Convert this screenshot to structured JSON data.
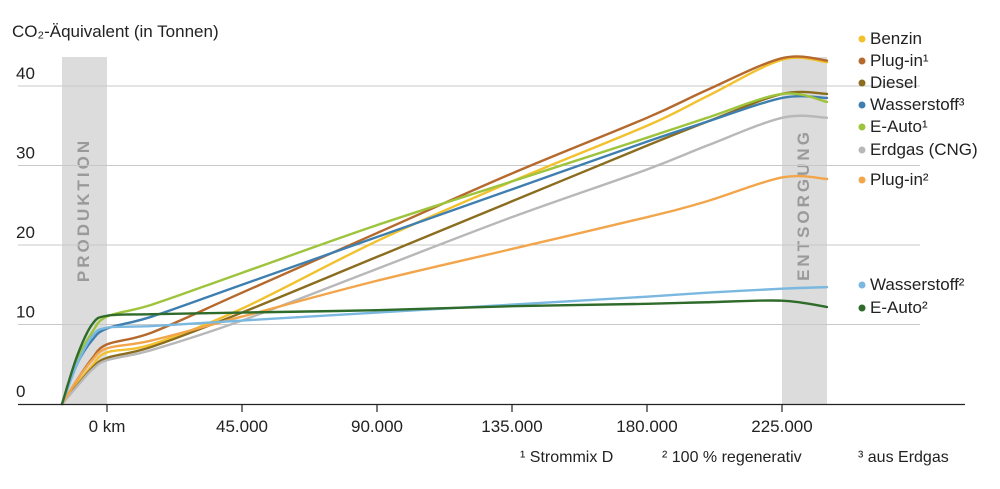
{
  "chart_data": {
    "type": "line",
    "ylabel": "CO₂-Äquivalent (in Tonnen)",
    "xlim": [
      -15000,
      270000
    ],
    "ylim": [
      0,
      45
    ],
    "x_ticks": [
      {
        "value": 0,
        "label": "0 km"
      },
      {
        "value": 45000,
        "label": "45.000"
      },
      {
        "value": 90000,
        "label": "90.000"
      },
      {
        "value": 135000,
        "label": "135.000"
      },
      {
        "value": 180000,
        "label": "180.000"
      },
      {
        "value": 225000,
        "label": "225.000"
      }
    ],
    "y_ticks": [
      {
        "value": 0,
        "label": "0"
      },
      {
        "value": 10,
        "label": "10"
      },
      {
        "value": 20,
        "label": "20"
      },
      {
        "value": 30,
        "label": "30"
      },
      {
        "value": 40,
        "label": "40"
      }
    ],
    "grid": "horizontal",
    "bands": [
      {
        "label": "PRODUKTION",
        "x_range": [
          -15000,
          0
        ],
        "color": "#dcdcdc"
      },
      {
        "label": "ENTSORGUNG",
        "x_range": [
          225000,
          240000
        ],
        "color": "#dcdcdc"
      }
    ],
    "footnotes": [
      "¹ Strommix D",
      "² 100 % regenerativ",
      "³ aus Erdgas"
    ],
    "series": [
      {
        "name": "Benzin",
        "color": "#f2c12e",
        "x": [
          -15000,
          -10000,
          -5000,
          0,
          15000,
          45000,
          90000,
          135000,
          180000,
          200000,
          225000,
          240000
        ],
        "y": [
          0,
          2.5,
          4.8,
          6.5,
          7.5,
          12,
          20.5,
          28,
          35,
          38.7,
          43.3,
          43.0
        ]
      },
      {
        "name": "Plug-in¹",
        "color": "#b5692d",
        "x": [
          -15000,
          -10000,
          -5000,
          0,
          15000,
          45000,
          90000,
          135000,
          180000,
          200000,
          225000,
          240000
        ],
        "y": [
          0,
          3,
          5.7,
          7.5,
          9,
          14,
          21.5,
          29,
          36,
          39.5,
          43.5,
          43.2
        ]
      },
      {
        "name": "Diesel",
        "color": "#8a6d1f",
        "x": [
          -15000,
          -10000,
          -5000,
          0,
          15000,
          45000,
          90000,
          135000,
          180000,
          200000,
          225000,
          240000
        ],
        "y": [
          0,
          2.3,
          4.5,
          5.8,
          7.2,
          11.5,
          18.5,
          25.5,
          32.5,
          35.5,
          39.0,
          39.0
        ]
      },
      {
        "name": "Wasserstoff³",
        "color": "#3f7fb0",
        "x": [
          -15000,
          -10000,
          -5000,
          0,
          15000,
          45000,
          90000,
          135000,
          180000,
          200000,
          225000,
          240000
        ],
        "y": [
          0,
          5,
          8,
          9.5,
          11,
          15,
          21,
          27,
          33,
          35.5,
          38.5,
          38.5
        ]
      },
      {
        "name": "E-Auto¹",
        "color": "#9dc43c",
        "x": [
          -15000,
          -10000,
          -5000,
          0,
          15000,
          45000,
          90000,
          135000,
          180000,
          200000,
          225000,
          240000
        ],
        "y": [
          0,
          5.5,
          9,
          11,
          12.5,
          16.5,
          22.5,
          28,
          33.5,
          36,
          39.0,
          38.0
        ]
      },
      {
        "name": "Erdgas (CNG)",
        "color": "#b8b8b8",
        "x": [
          -15000,
          -10000,
          -5000,
          0,
          15000,
          45000,
          90000,
          135000,
          180000,
          200000,
          225000,
          240000
        ],
        "y": [
          0,
          2.2,
          4.3,
          5.5,
          6.8,
          10.5,
          17,
          23.5,
          29.5,
          32.5,
          36.0,
          36.0
        ]
      },
      {
        "name": "Plug-in²",
        "color": "#f2a54a",
        "x": [
          -15000,
          -10000,
          -5000,
          0,
          15000,
          45000,
          90000,
          135000,
          180000,
          200000,
          225000,
          240000
        ],
        "y": [
          0,
          3,
          5.5,
          7,
          8,
          11,
          15.5,
          19.5,
          23.5,
          25.5,
          28.5,
          28.3
        ]
      },
      {
        "name": "Wasserstoff²",
        "color": "#7ab8e0",
        "x": [
          -15000,
          -10000,
          -5000,
          0,
          15000,
          45000,
          90000,
          135000,
          180000,
          200000,
          225000,
          240000
        ],
        "y": [
          0,
          5,
          8.5,
          9.6,
          9.8,
          10.5,
          11.5,
          12.5,
          13.5,
          14,
          14.5,
          14.7
        ]
      },
      {
        "name": "E-Auto²",
        "color": "#2f6b2a",
        "x": [
          -15000,
          -10000,
          -5000,
          0,
          15000,
          45000,
          90000,
          135000,
          180000,
          200000,
          225000,
          240000
        ],
        "y": [
          0,
          6,
          10,
          11.1,
          11.3,
          11.5,
          11.8,
          12.3,
          12.6,
          12.8,
          13.0,
          12.2
        ]
      }
    ]
  }
}
